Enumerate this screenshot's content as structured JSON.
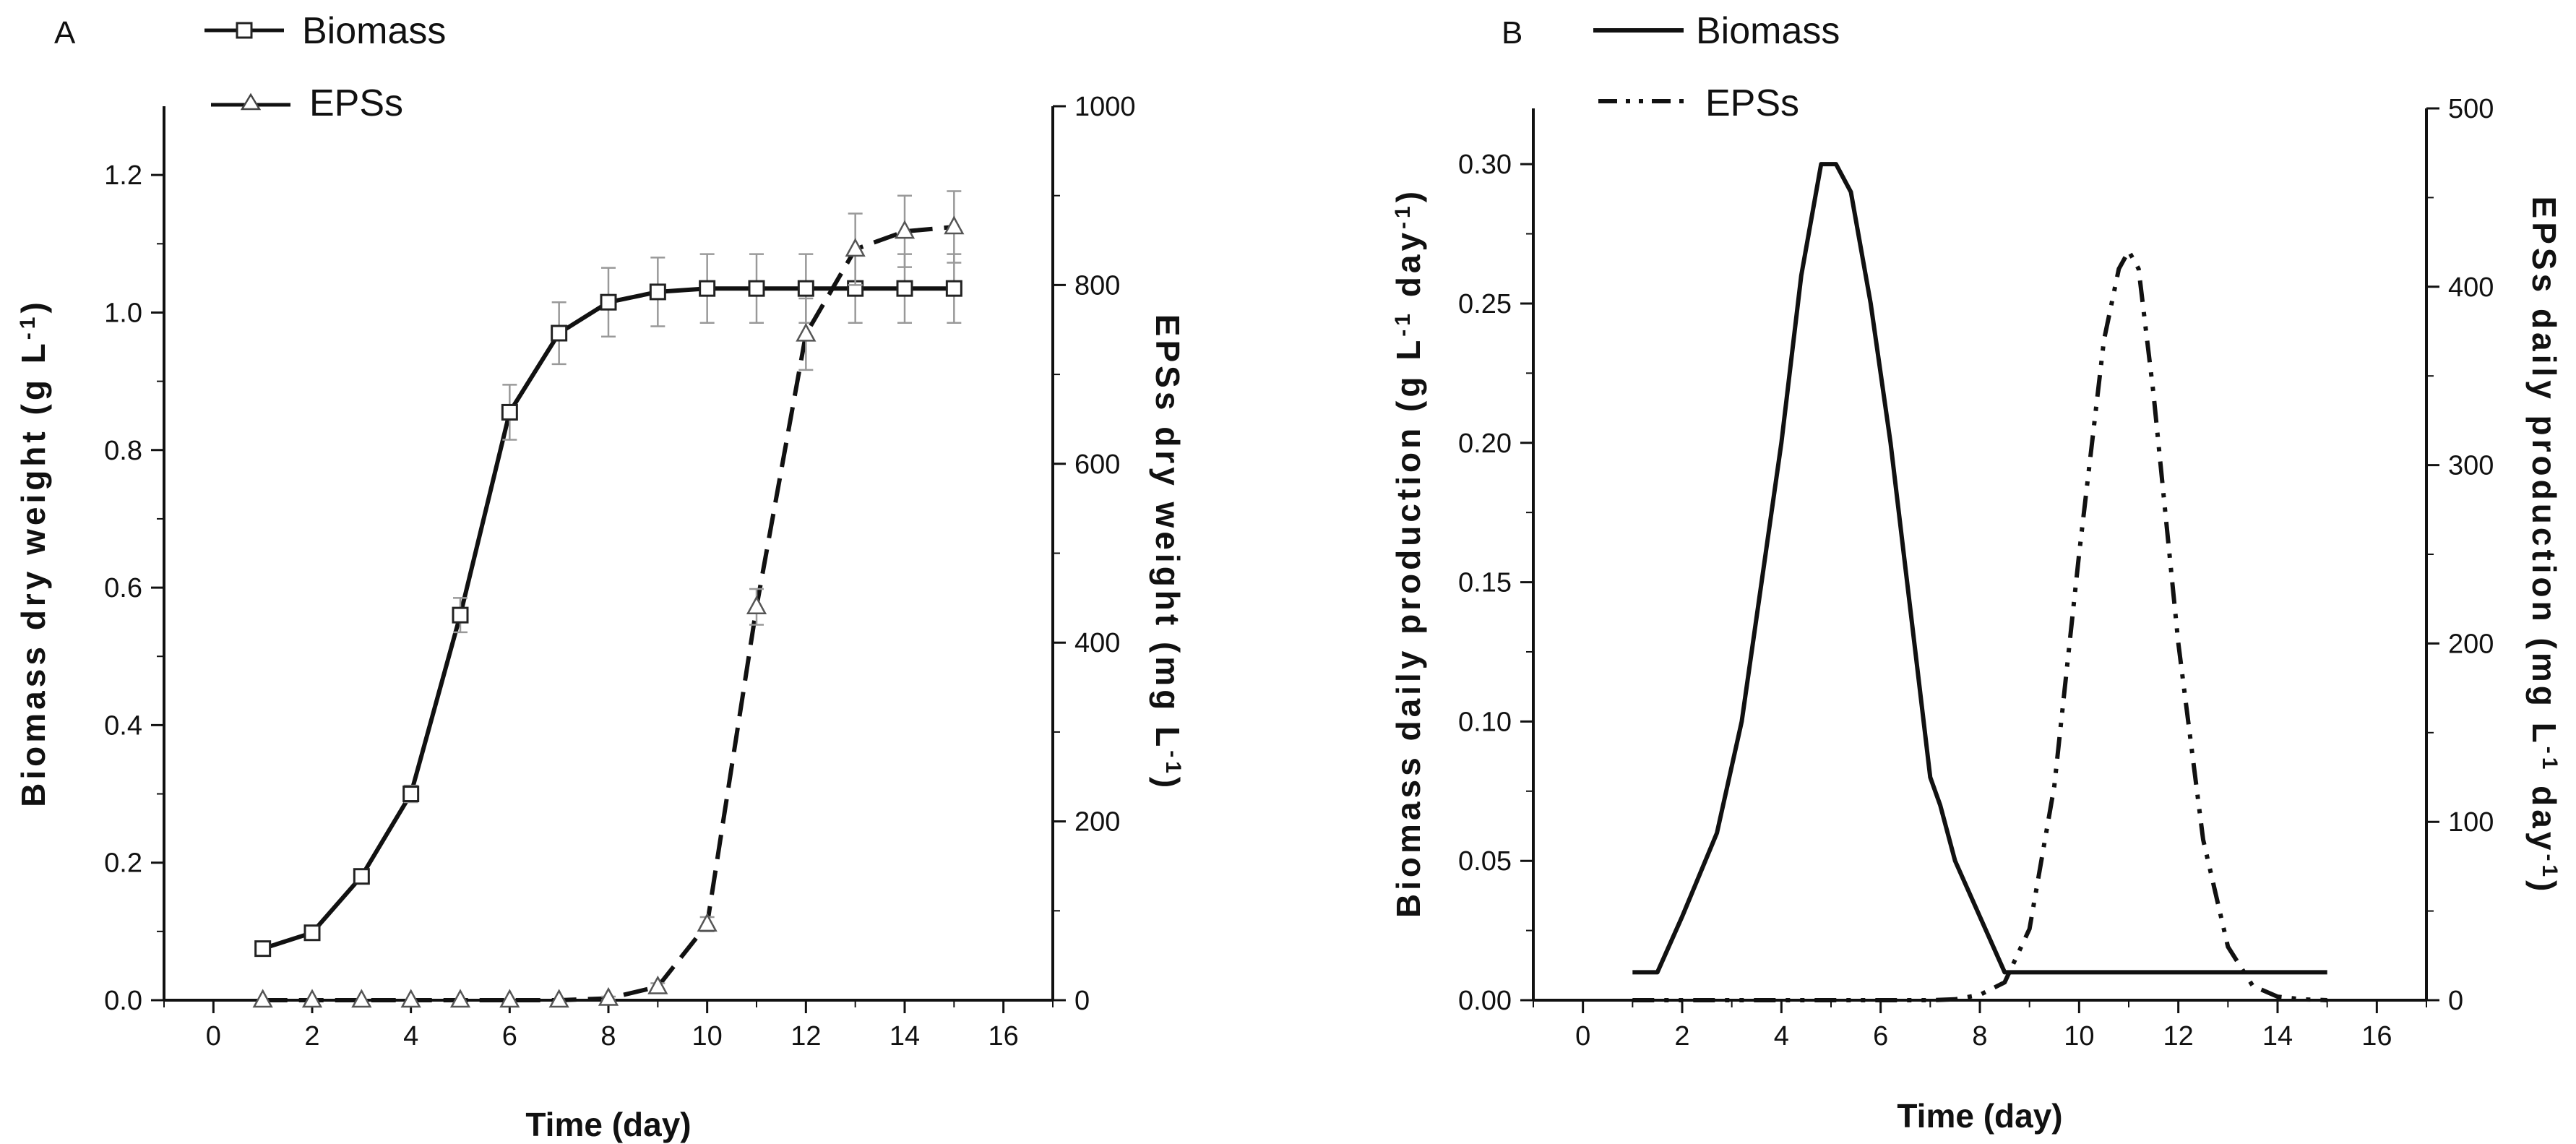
{
  "chart_data": [
    {
      "panel": "A",
      "type": "line",
      "xlabel": "Time (day)",
      "ylabel_left": "Biomass dry weight (g L-1)",
      "ylabel_right": "EPSs dry weight (mg L-1)",
      "xlim": [
        -1,
        17
      ],
      "ylim_left": [
        0,
        1.3
      ],
      "ylim_right": [
        0,
        1000
      ],
      "x_ticks": [
        0,
        2,
        4,
        6,
        8,
        10,
        12,
        14,
        16
      ],
      "y_left_ticks": [
        0.0,
        0.2,
        0.4,
        0.6,
        0.8,
        1.0,
        1.2
      ],
      "y_right_ticks": [
        0,
        200,
        400,
        600,
        800,
        1000
      ],
      "legend": [
        "Biomass",
        "EPSs"
      ],
      "series": [
        {
          "name": "Biomass",
          "axis": "left",
          "marker": "square",
          "style": "solid",
          "x": [
            1,
            2,
            3,
            4,
            5,
            6,
            7,
            8,
            9,
            10,
            11,
            12,
            13,
            14,
            15
          ],
          "values": [
            0.075,
            0.098,
            0.18,
            0.3,
            0.56,
            0.855,
            0.97,
            1.015,
            1.03,
            1.035,
            1.035,
            1.035,
            1.035,
            1.035,
            1.035
          ],
          "error": [
            0.006,
            0.007,
            0.01,
            0.012,
            0.025,
            0.04,
            0.045,
            0.05,
            0.05,
            0.05,
            0.05,
            0.05,
            0.05,
            0.05,
            0.05
          ]
        },
        {
          "name": "EPSs",
          "axis": "right",
          "marker": "triangle",
          "style": "dashed",
          "x": [
            1,
            2,
            3,
            4,
            5,
            6,
            7,
            8,
            9,
            10,
            11,
            12,
            13,
            14,
            15
          ],
          "values": [
            0,
            0,
            0,
            0,
            0,
            0,
            0,
            2,
            15,
            85,
            440,
            745,
            840,
            860,
            865
          ],
          "error": [
            0,
            0,
            0,
            0,
            0,
            0,
            0,
            2,
            4,
            8,
            20,
            40,
            40,
            40,
            40
          ]
        }
      ]
    },
    {
      "panel": "B",
      "type": "line",
      "xlabel": "Time (day)",
      "ylabel_left": "Biomass daily production (g L-1 day-1)",
      "ylabel_right": "EPSs daily production (mg L-1 day-1)",
      "xlim": [
        -1,
        17
      ],
      "ylim_left": [
        0,
        0.32
      ],
      "ylim_right": [
        0,
        500
      ],
      "x_ticks": [
        0,
        2,
        4,
        6,
        8,
        10,
        12,
        14,
        16
      ],
      "y_left_ticks": [
        0.0,
        0.05,
        0.1,
        0.15,
        0.2,
        0.25,
        0.3
      ],
      "y_right_ticks": [
        0,
        100,
        200,
        300,
        400,
        500
      ],
      "legend": [
        "Biomass",
        "EPSs"
      ],
      "series": [
        {
          "name": "Biomass",
          "axis": "left",
          "style": "solid",
          "x": [
            1,
            1.5,
            2,
            2.7,
            3.2,
            3.6,
            4,
            4.4,
            4.8,
            5.1,
            5.4,
            5.8,
            6.2,
            6.6,
            7,
            7.2,
            7.5,
            8,
            8.5,
            9,
            10,
            11,
            12,
            13,
            14,
            15
          ],
          "values": [
            0.01,
            0.01,
            0.03,
            0.06,
            0.1,
            0.15,
            0.2,
            0.26,
            0.3,
            0.3,
            0.29,
            0.25,
            0.2,
            0.14,
            0.08,
            0.07,
            0.05,
            0.03,
            0.01,
            0.01,
            0.01,
            0.01,
            0.01,
            0.01,
            0.01,
            0.01
          ]
        },
        {
          "name": "EPSs",
          "axis": "right",
          "style": "dash-dot-dot",
          "x": [
            1,
            3,
            5,
            7,
            7.5,
            8,
            8.5,
            9,
            9.5,
            10,
            10.5,
            10.8,
            11,
            11.2,
            11.5,
            12,
            12.5,
            13,
            13.5,
            14,
            14.5,
            15
          ],
          "values": [
            0,
            0,
            0,
            0,
            0.5,
            3,
            10,
            40,
            120,
            250,
            370,
            410,
            420,
            410,
            340,
            200,
            90,
            30,
            8,
            2,
            0.5,
            0
          ]
        }
      ]
    }
  ]
}
